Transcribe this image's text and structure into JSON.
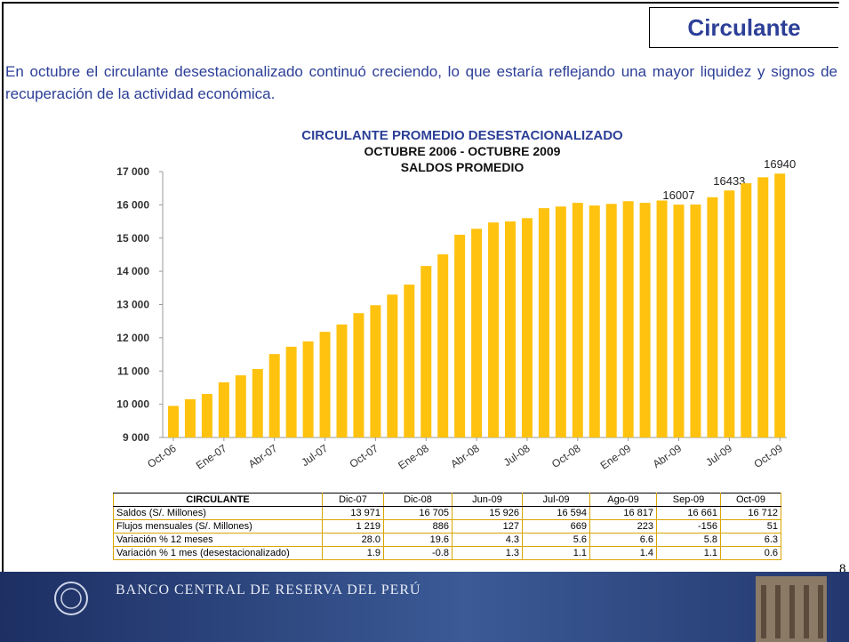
{
  "header": {
    "title": "Circulante"
  },
  "text": "En octubre el circulante desestacionalizado continuó creciendo, lo que estaría reflejando una mayor liquidez y signos de recuperación de la actividad económica.",
  "chart_data": {
    "type": "bar",
    "title": "CIRCULANTE PROMEDIO DESESTACIONALIZADO",
    "subtitle": [
      "OCTUBRE 2006 - OCTUBRE 2009",
      "SALDOS PROMEDIO"
    ],
    "categories": [
      "Oct-06",
      null,
      null,
      "Ene-07",
      null,
      null,
      "Abr-07",
      null,
      null,
      "Jul-07",
      null,
      null,
      "Oct-07",
      null,
      null,
      "Ene-08",
      null,
      null,
      "Abr-08",
      null,
      null,
      "Jul-08",
      null,
      null,
      "Oct-08",
      null,
      null,
      "Ene-09",
      null,
      null,
      "Abr-09",
      null,
      null,
      "Jul-09",
      null,
      null,
      "Oct-09"
    ],
    "values": [
      9950,
      10150,
      10310,
      10660,
      10870,
      11060,
      11510,
      11730,
      11890,
      12180,
      12400,
      12740,
      12980,
      13300,
      13600,
      14160,
      14510,
      15100,
      15280,
      15470,
      15500,
      15600,
      15900,
      15950,
      16060,
      15980,
      16030,
      16110,
      16060,
      16130,
      16007,
      16010,
      16230,
      16433,
      16650,
      16830,
      16940
    ],
    "value_labels": [
      null,
      null,
      null,
      null,
      null,
      null,
      null,
      null,
      null,
      null,
      null,
      null,
      null,
      null,
      null,
      null,
      null,
      null,
      null,
      null,
      null,
      null,
      null,
      null,
      null,
      null,
      null,
      null,
      null,
      null,
      "16007",
      null,
      null,
      "16433",
      null,
      null,
      "16940"
    ],
    "color": "#FFC20E",
    "ylim": [
      9000,
      17000
    ],
    "yticks": [
      {
        "value": 9000,
        "label": "9 000"
      },
      {
        "value": 10000,
        "label": "10 000"
      },
      {
        "value": 11000,
        "label": "11 000"
      },
      {
        "value": 12000,
        "label": "12 000"
      },
      {
        "value": 13000,
        "label": "13 000"
      },
      {
        "value": 14000,
        "label": "14 000"
      },
      {
        "value": 15000,
        "label": "15 000"
      },
      {
        "value": 16000,
        "label": "16 000"
      },
      {
        "value": 17000,
        "label": "17 000"
      }
    ],
    "grid": false
  },
  "table": {
    "header": [
      "CIRCULANTE",
      "Dic-07",
      "Dic-08",
      "Jun-09",
      "Jul-09",
      "Ago-09",
      "Sep-09",
      "Oct-09"
    ],
    "rows": [
      [
        "Saldos (S/. Millones)",
        "13 971",
        "16 705",
        "15 926",
        "16 594",
        "16 817",
        "16 661",
        "16 712"
      ],
      [
        "Flujos mensuales (S/. Millones)",
        "1 219",
        "886",
        "127",
        "669",
        "223",
        "-156",
        "51"
      ],
      [
        "Variación % 12 meses",
        "28.0",
        "19.6",
        "4.3",
        "5.6",
        "6.6",
        "5.8",
        "6.3"
      ],
      [
        "Variación % 1 mes (desestacionalizado)",
        "1.9",
        "-0.8",
        "1.3",
        "1.1",
        "1.4",
        "1.1",
        "0.6"
      ]
    ]
  },
  "page_number": "8",
  "footer": {
    "institution": "BANCO CENTRAL DE RESERVA DEL PERÚ"
  }
}
